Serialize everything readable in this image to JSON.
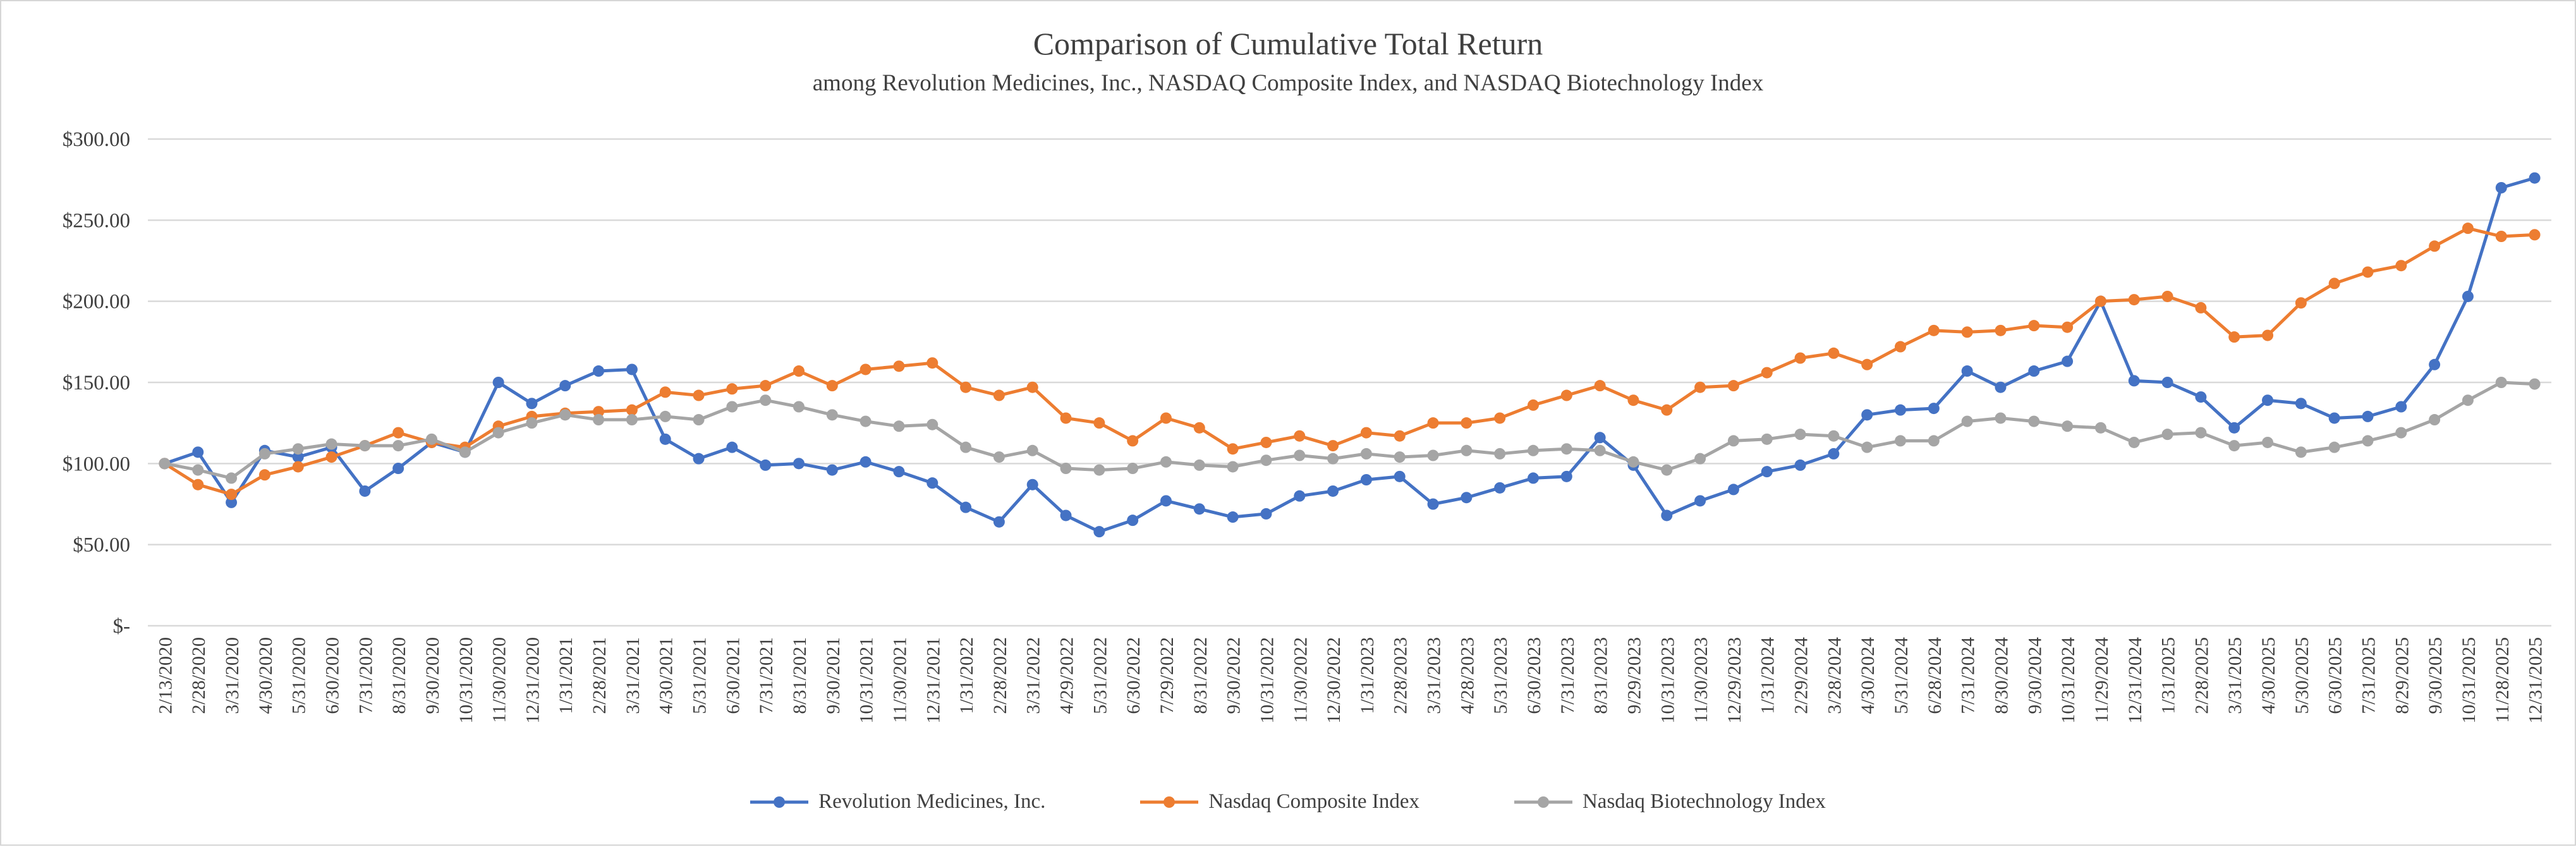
{
  "chart": {
    "title": "Comparison of Cumulative Total Return",
    "subtitle": "among Revolution Medicines, Inc., NASDAQ Composite Index, and NASDAQ Biotechnology Index"
  },
  "legend": {
    "items": [
      {
        "label": "Revolution Medicines, Inc.",
        "color": "#4472C4"
      },
      {
        "label": "Nasdaq Composite Index",
        "color": "#ED7D31"
      },
      {
        "label": "Nasdaq Biotechnology Index",
        "color": "#A5A5A5"
      }
    ]
  },
  "chart_data": {
    "type": "line",
    "title": "Comparison of Cumulative Total Return",
    "subtitle": "among Revolution Medicines, Inc., NASDAQ Composite Index, and NASDAQ Biotechnology Index",
    "grid": true,
    "legend_position": "bottom",
    "marker": "circle",
    "ylim": [
      0,
      300
    ],
    "y_ticks": [
      {
        "label": "$300.00",
        "value": 300
      },
      {
        "label": "$250.00",
        "value": 250
      },
      {
        "label": "$200.00",
        "value": 200
      },
      {
        "label": "$150.00",
        "value": 150
      },
      {
        "label": "$100.00",
        "value": 100
      },
      {
        "label": "$50.00",
        "value": 50
      },
      {
        "label": "$-",
        "value": 0
      }
    ],
    "x": [
      "2/13/2020",
      "2/28/2020",
      "3/31/2020",
      "4/30/2020",
      "5/31/2020",
      "6/30/2020",
      "7/31/2020",
      "8/31/2020",
      "9/30/2020",
      "10/31/2020",
      "11/30/2020",
      "12/31/2020",
      "1/31/2021",
      "2/28/2021",
      "3/31/2021",
      "4/30/2021",
      "5/31/2021",
      "6/30/2021",
      "7/31/2021",
      "8/31/2021",
      "9/30/2021",
      "10/31/2021",
      "11/30/2021",
      "12/31/2021",
      "1/31/2022",
      "2/28/2022",
      "3/31/2022",
      "4/29/2022",
      "5/31/2022",
      "6/30/2022",
      "7/29/2022",
      "8/31/2022",
      "9/30/2022",
      "10/31/2022",
      "11/30/2022",
      "12/30/2022",
      "1/31/2023",
      "2/28/2023",
      "3/31/2023",
      "4/28/2023",
      "5/31/2023",
      "6/30/2023",
      "7/31/2023",
      "8/31/2023",
      "9/29/2023",
      "10/31/2023",
      "11/30/2023",
      "12/29/2023",
      "1/31/2024",
      "2/29/2024",
      "3/28/2024",
      "4/30/2024",
      "5/31/2024",
      "6/28/2024",
      "7/31/2024",
      "8/30/2024",
      "9/30/2024",
      "10/31/2024",
      "11/29/2024",
      "12/31/2024",
      "1/31/2025",
      "2/28/2025",
      "3/31/2025",
      "4/30/2025",
      "5/30/2025",
      "6/30/2025",
      "7/31/2025",
      "8/29/2025",
      "9/30/2025",
      "10/31/2025",
      "11/28/2025",
      "12/31/2025"
    ],
    "series": [
      {
        "name": "Revolution Medicines, Inc.",
        "color": "#4472C4",
        "values": [
          100,
          107,
          76,
          108,
          104,
          110,
          83,
          97,
          113,
          107,
          150,
          137,
          148,
          157,
          158,
          115,
          103,
          110,
          99,
          100,
          96,
          101,
          95,
          88,
          73,
          64,
          87,
          68,
          58,
          65,
          77,
          72,
          67,
          69,
          80,
          83,
          90,
          92,
          75,
          79,
          85,
          91,
          92,
          116,
          99,
          68,
          77,
          84,
          95,
          99,
          106,
          130,
          133,
          134,
          157,
          147,
          157,
          163,
          200,
          151,
          150,
          141,
          122,
          139,
          137,
          128,
          129,
          135,
          161,
          203,
          270,
          276
        ]
      },
      {
        "name": "Nasdaq Composite Index",
        "color": "#ED7D31",
        "values": [
          100,
          87,
          81,
          93,
          98,
          104,
          111,
          119,
          113,
          110,
          123,
          129,
          131,
          132,
          133,
          144,
          142,
          146,
          148,
          157,
          148,
          158,
          160,
          162,
          147,
          142,
          147,
          128,
          125,
          114,
          128,
          122,
          109,
          113,
          117,
          111,
          119,
          117,
          125,
          125,
          128,
          136,
          142,
          148,
          139,
          133,
          147,
          148,
          156,
          165,
          168,
          161,
          172,
          182,
          181,
          182,
          185,
          184,
          200,
          201,
          203,
          196,
          178,
          179,
          199,
          211,
          218,
          222,
          234,
          245,
          240,
          241
        ]
      },
      {
        "name": "Nasdaq Biotechnology Index",
        "color": "#A5A5A5",
        "values": [
          100,
          96,
          91,
          106,
          109,
          112,
          111,
          111,
          115,
          107,
          119,
          125,
          130,
          127,
          127,
          129,
          127,
          135,
          139,
          135,
          130,
          126,
          123,
          124,
          110,
          104,
          108,
          97,
          96,
          97,
          101,
          99,
          98,
          102,
          105,
          103,
          106,
          104,
          105,
          108,
          106,
          108,
          109,
          108,
          101,
          96,
          103,
          114,
          115,
          118,
          117,
          110,
          114,
          114,
          126,
          128,
          126,
          123,
          122,
          113,
          118,
          119,
          111,
          113,
          107,
          110,
          114,
          119,
          127,
          139,
          150,
          149
        ]
      }
    ]
  }
}
